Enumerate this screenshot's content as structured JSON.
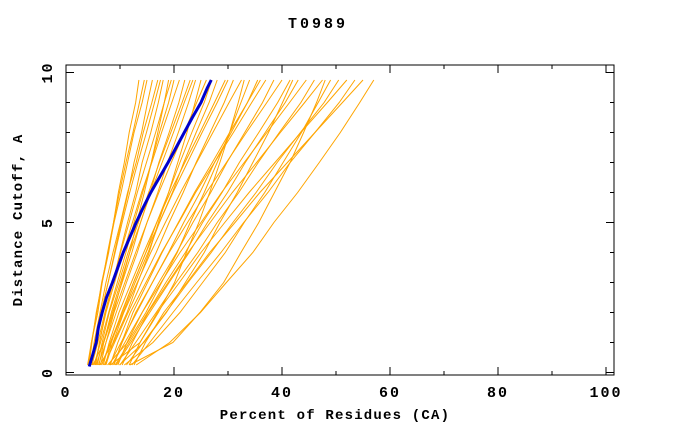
{
  "window": {
    "background": "#ffffff"
  },
  "chart_data": {
    "type": "line",
    "title": "T0989",
    "xlabel": "Percent of Residues (CA)",
    "ylabel": "Distance Cutoff, A",
    "xlim": [
      0,
      101.5
    ],
    "ylim": [
      -0.1,
      10.25
    ],
    "grid": false,
    "legend": "none",
    "axes": {
      "x": {
        "major_ticks": [
          0,
          20,
          40,
          60,
          80,
          100
        ],
        "major_labels": [
          "0",
          "20",
          "40",
          "60",
          "80",
          "100"
        ],
        "minor_ticks": [
          10,
          30,
          50,
          70,
          90
        ]
      },
      "y": {
        "major_ticks": [
          0,
          5,
          10
        ],
        "major_labels": [
          "0",
          "5",
          "10"
        ],
        "minor_ticks": [
          1,
          2,
          3,
          4,
          6,
          7,
          8,
          9
        ]
      }
    },
    "colors": {
      "model_lines": "#FFA500",
      "highlight_line": "#0000CD",
      "axis": "#000000",
      "text": "#000000",
      "background": "#FFFFFF"
    },
    "y_samples": [
      0.25,
      1,
      2,
      3,
      4,
      5,
      6,
      7,
      8,
      9,
      9.75
    ],
    "model_series_x": [
      [
        4.0,
        4.7,
        5.9,
        6.7,
        7.9,
        8.8,
        9.7,
        10.8,
        11.7,
        12.9,
        13.5
      ],
      [
        4.2,
        4.7,
        5.7,
        6.6,
        7.8,
        8.9,
        10.2,
        11.4,
        12.6,
        14.1,
        15.0
      ],
      [
        4.4,
        5.4,
        6.5,
        7.8,
        9.0,
        10.2,
        11.5,
        12.6,
        14.0,
        15.1,
        16.0
      ],
      [
        4.6,
        5.2,
        6.3,
        7.4,
        8.7,
        10.1,
        11.4,
        13.0,
        14.3,
        15.9,
        17.0
      ],
      [
        4.8,
        5.9,
        7.2,
        8.7,
        10.0,
        11.4,
        12.9,
        14.1,
        15.7,
        17.1,
        18.0
      ],
      [
        5.0,
        7.0,
        8.8,
        10.3,
        11.8,
        13.1,
        14.5,
        15.8,
        17.0,
        18.2,
        19.0
      ],
      [
        5.2,
        6.4,
        7.9,
        9.5,
        11.1,
        12.6,
        14.2,
        15.8,
        17.3,
        19.0,
        20.0
      ],
      [
        5.4,
        6.2,
        7.4,
        9.0,
        10.6,
        12.3,
        14.0,
        15.9,
        17.7,
        19.6,
        21.0
      ],
      [
        5.6,
        6.9,
        8.6,
        10.4,
        12.2,
        13.8,
        15.6,
        17.2,
        19.1,
        20.9,
        22.0
      ],
      [
        5.8,
        6.7,
        8.0,
        9.8,
        11.5,
        13.4,
        15.3,
        17.3,
        19.4,
        21.5,
        23.0
      ],
      [
        6.0,
        7.4,
        9.3,
        11.2,
        13.2,
        15.0,
        17.0,
        18.8,
        20.8,
        22.7,
        24.0
      ],
      [
        6.2,
        8.8,
        11.3,
        13.3,
        15.4,
        17.1,
        19.0,
        20.7,
        22.4,
        23.9,
        25.0
      ],
      [
        6.4,
        7.4,
        8.9,
        10.9,
        12.9,
        15.0,
        17.2,
        19.5,
        21.9,
        24.2,
        26.0
      ],
      [
        6.6,
        8.2,
        10.4,
        12.5,
        14.8,
        16.8,
        19.0,
        21.1,
        23.3,
        25.6,
        27.0
      ],
      [
        4.3,
        4.8,
        5.6,
        6.7,
        7.7,
        8.8,
        9.9,
        11.1,
        12.4,
        13.6,
        14.5
      ],
      [
        4.9,
        5.5,
        6.5,
        7.8,
        9.1,
        10.4,
        11.8,
        13.3,
        14.9,
        16.4,
        17.5
      ],
      [
        5.5,
        6.2,
        7.3,
        8.7,
        10.1,
        11.7,
        13.2,
        14.9,
        16.6,
        18.2,
        19.5
      ],
      [
        6.1,
        7.0,
        8.4,
        10.1,
        11.8,
        13.8,
        15.7,
        17.8,
        19.9,
        21.9,
        23.5
      ],
      [
        6.6,
        8.3,
        10.6,
        12.8,
        15.2,
        17.3,
        19.7,
        21.8,
        24.1,
        26.5,
        28.0
      ],
      [
        6.9,
        8.0,
        9.8,
        12.1,
        14.4,
        16.8,
        19.3,
        22.0,
        24.8,
        27.5,
        29.5
      ],
      [
        7.1,
        9.0,
        11.5,
        14.0,
        16.7,
        19.1,
        21.7,
        24.1,
        26.7,
        29.3,
        31.0
      ],
      [
        7.4,
        8.7,
        10.7,
        13.2,
        15.7,
        18.4,
        21.2,
        24.2,
        27.2,
        30.2,
        32.5
      ],
      [
        7.7,
        11.4,
        14.8,
        17.7,
        20.6,
        23.0,
        25.6,
        28.0,
        30.3,
        32.4,
        34.0
      ],
      [
        8.0,
        10.2,
        13.1,
        16.0,
        19.0,
        21.8,
        24.8,
        27.5,
        30.6,
        33.6,
        35.5
      ],
      [
        8.2,
        9.6,
        11.9,
        14.8,
        17.7,
        20.9,
        24.0,
        27.5,
        31.0,
        34.4,
        37.0
      ],
      [
        8.5,
        10.9,
        14.1,
        17.2,
        20.5,
        23.5,
        26.8,
        29.8,
        33.1,
        36.4,
        38.5
      ],
      [
        8.8,
        10.4,
        12.9,
        16.0,
        19.1,
        22.5,
        26.0,
        29.7,
        33.4,
        37.2,
        40.0
      ],
      [
        9.1,
        11.7,
        15.1,
        18.5,
        22.1,
        25.3,
        28.9,
        32.1,
        35.7,
        39.2,
        41.5
      ],
      [
        7.3,
        8.4,
        10.3,
        12.5,
        14.8,
        17.3,
        19.8,
        22.5,
        25.2,
        28.0,
        30.0
      ],
      [
        8.9,
        10.3,
        12.4,
        15.1,
        17.8,
        20.8,
        23.8,
        27.1,
        30.3,
        33.6,
        36.0
      ],
      [
        9.3,
        12.0,
        15.5,
        19.1,
        22.8,
        26.2,
        29.9,
        33.2,
        36.9,
        40.6,
        43.0
      ],
      [
        9.6,
        11.3,
        14.1,
        17.6,
        21.1,
        25.0,
        28.8,
        33.0,
        37.2,
        41.4,
        44.5
      ],
      [
        10.0,
        12.9,
        16.7,
        20.4,
        24.4,
        28.0,
        32.0,
        35.6,
        39.5,
        43.5,
        46.0
      ],
      [
        10.4,
        12.3,
        15.2,
        18.9,
        22.6,
        26.7,
        30.8,
        35.3,
        39.7,
        44.2,
        47.5
      ],
      [
        10.8,
        16.1,
        21.1,
        25.3,
        29.5,
        33.0,
        36.8,
        40.2,
        43.6,
        46.7,
        49.0
      ],
      [
        11.2,
        14.3,
        18.5,
        22.6,
        26.9,
        30.9,
        35.2,
        39.1,
        43.4,
        47.8,
        50.5
      ],
      [
        11.7,
        13.7,
        16.9,
        21.0,
        25.0,
        29.4,
        33.9,
        38.7,
        43.5,
        48.4,
        52.0
      ],
      [
        12.2,
        15.5,
        19.8,
        24.2,
        28.7,
        32.9,
        37.4,
        41.5,
        46.1,
        50.6,
        53.5
      ],
      [
        12.6,
        14.7,
        18.1,
        22.4,
        26.6,
        31.3,
        35.9,
        41.0,
        46.1,
        51.2,
        55.0
      ],
      [
        13.0,
        19.2,
        24.9,
        29.7,
        34.6,
        38.5,
        42.9,
        46.9,
        50.8,
        54.4,
        57.0
      ],
      [
        11.8,
        19.8,
        24.8,
        29.2,
        32.4,
        35.7,
        38.6,
        41.5,
        44.0,
        46.4,
        48.0
      ],
      [
        8.2,
        13.7,
        17.1,
        20.1,
        22.3,
        24.6,
        26.6,
        28.5,
        30.3,
        31.9,
        33.0
      ],
      [
        9.9,
        14.4,
        18.6,
        22.1,
        25.6,
        28.5,
        31.7,
        34.6,
        37.5,
        40.1,
        42.0
      ]
    ],
    "highlight_series": {
      "y": [
        0.2,
        0.5,
        1,
        1.5,
        2,
        2.5,
        3,
        3.5,
        4,
        4.5,
        5,
        5.5,
        6,
        6.5,
        7,
        7.5,
        8,
        8.5,
        9,
        9.5,
        9.75
      ],
      "x": [
        4.3,
        4.8,
        5.6,
        6.0,
        6.7,
        7.5,
        8.6,
        9.6,
        10.6,
        11.8,
        13.0,
        14.3,
        15.7,
        17.3,
        18.9,
        20.4,
        21.9,
        23.4,
        25.0,
        26.2,
        26.9
      ]
    }
  }
}
